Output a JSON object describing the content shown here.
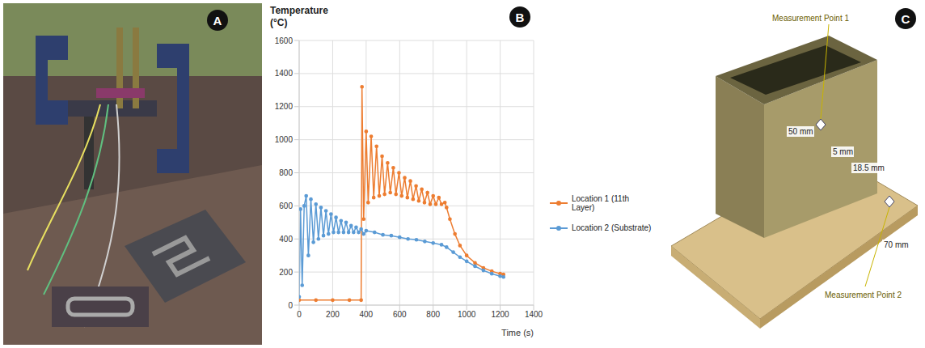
{
  "panels": {
    "A": {
      "letter": "A"
    },
    "C": {
      "letter": "C",
      "labels": [
        "Measurement Point 1",
        "Measurement Point 2"
      ],
      "dimensions": [
        "50 mm",
        "5 mm",
        "18.5 mm",
        "70 mm"
      ]
    }
  },
  "chart_data": {
    "letter": "B",
    "type": "line",
    "title": "Temperature",
    "y_unit": "(°C)",
    "x_label": "Time (s)",
    "xlim": [
      0,
      1400
    ],
    "xticks": [
      0,
      200,
      400,
      600,
      800,
      1000,
      1200,
      1400
    ],
    "ylim": [
      0,
      1600
    ],
    "yticks": [
      0,
      200,
      400,
      600,
      800,
      1000,
      1200,
      1400,
      1600
    ],
    "grid": true,
    "legend": "right",
    "series": [
      {
        "name": "Location 1 (11th Layer)",
        "color": "#ed7d31",
        "marker": "circle",
        "x": [
          0,
          100,
          200,
          300,
          370,
          375,
          385,
          400,
          412,
          430,
          445,
          462,
          478,
          495,
          510,
          528,
          544,
          562,
          578,
          596,
          612,
          630,
          646,
          664,
          680,
          698,
          714,
          732,
          748,
          766,
          782,
          800,
          816,
          834,
          850,
          870,
          880,
          900,
          930,
          960,
          1000,
          1050,
          1100,
          1150,
          1200,
          1220
        ],
        "values": [
          30,
          30,
          30,
          30,
          30,
          1320,
          520,
          1050,
          620,
          1020,
          650,
          960,
          660,
          900,
          670,
          860,
          680,
          830,
          670,
          800,
          660,
          770,
          650,
          750,
          640,
          720,
          630,
          700,
          620,
          680,
          610,
          660,
          610,
          650,
          610,
          620,
          590,
          520,
          430,
          360,
          300,
          255,
          225,
          205,
          190,
          185
        ]
      },
      {
        "name": "Location 2 (Substrate)",
        "color": "#5b9bd5",
        "marker": "circle",
        "x": [
          0,
          8,
          18,
          30,
          42,
          55,
          70,
          85,
          100,
          115,
          130,
          145,
          160,
          175,
          190,
          205,
          220,
          235,
          250,
          265,
          280,
          295,
          310,
          325,
          340,
          355,
          370,
          385,
          400,
          450,
          500,
          550,
          600,
          650,
          700,
          750,
          800,
          850,
          880,
          920,
          960,
          1000,
          1050,
          1100,
          1150,
          1200,
          1220
        ],
        "values": [
          50,
          580,
          120,
          600,
          660,
          300,
          640,
          380,
          610,
          400,
          590,
          420,
          570,
          430,
          550,
          440,
          530,
          440,
          510,
          440,
          500,
          440,
          480,
          440,
          470,
          440,
          460,
          430,
          450,
          440,
          425,
          420,
          410,
          400,
          395,
          385,
          375,
          365,
          350,
          320,
          290,
          265,
          235,
          210,
          190,
          175,
          170
        ]
      }
    ]
  }
}
